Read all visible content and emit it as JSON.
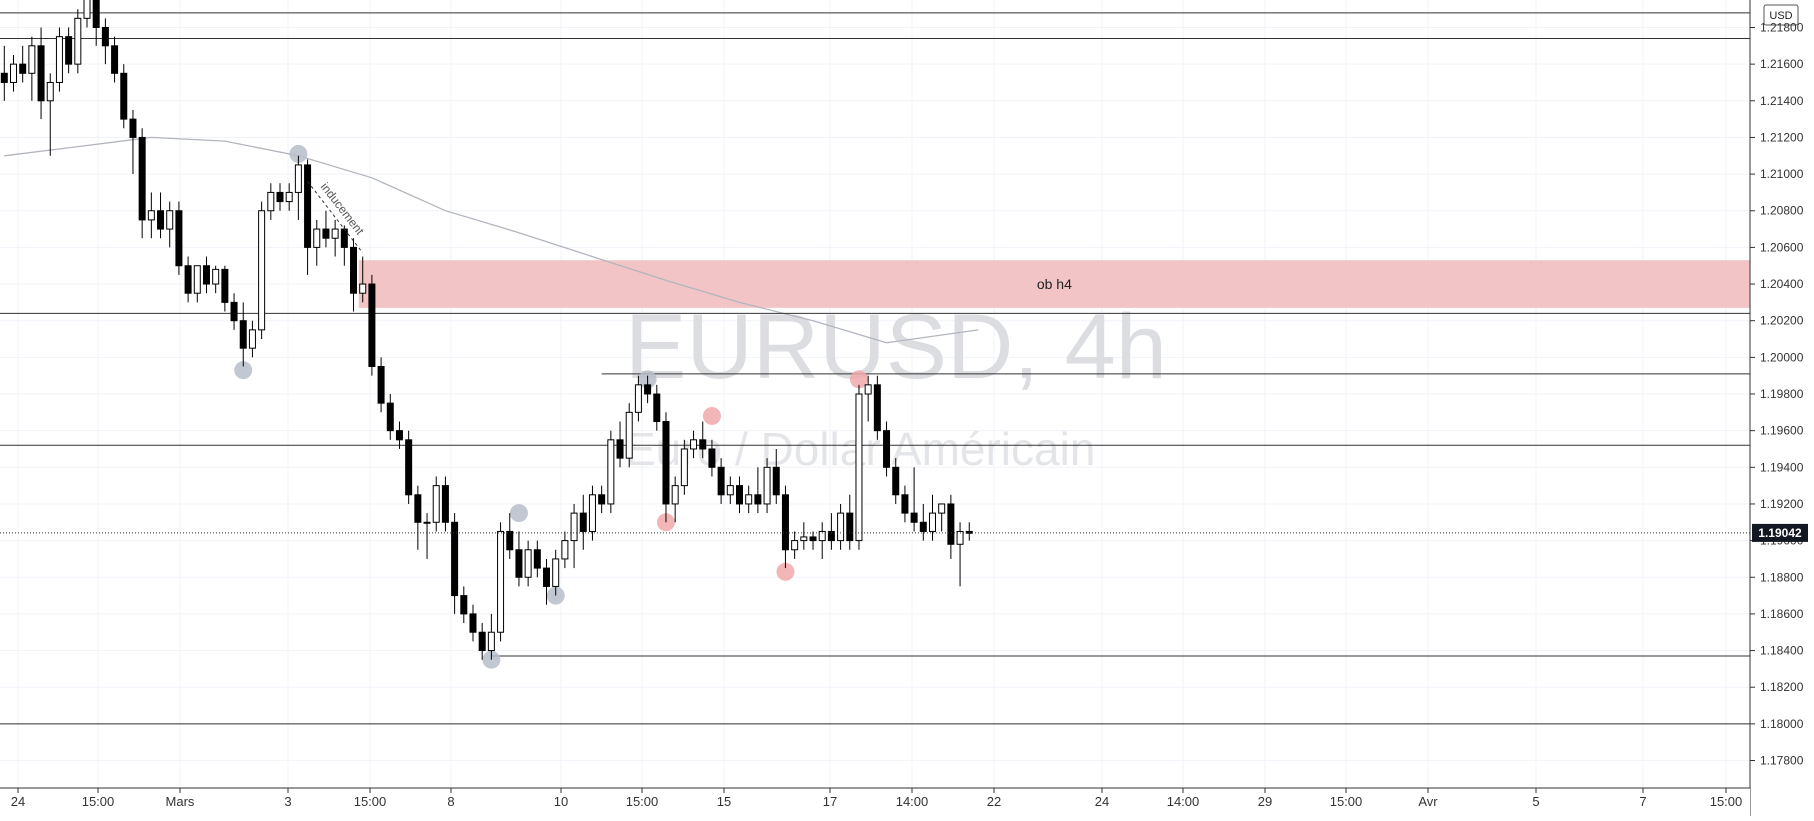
{
  "chart_data": {
    "type": "candlestick",
    "symbol": "EURUSD",
    "interval": "4h",
    "watermark_line1": "EURUSD, 4h",
    "watermark_line2": "Euro / Dollar Américain",
    "currency": "USD",
    "current_price": "1.19042",
    "ylim": [
      1.1765,
      1.2195
    ],
    "y_ticks": [
      "1.17800",
      "1.18000",
      "1.18200",
      "1.18400",
      "1.18600",
      "1.18800",
      "1.19000",
      "1.19200",
      "1.19400",
      "1.19600",
      "1.19800",
      "1.20000",
      "1.20200",
      "1.20400",
      "1.20600",
      "1.20800",
      "1.21000",
      "1.21200",
      "1.21400",
      "1.21600",
      "1.21800"
    ],
    "x_ticks": [
      "24",
      "15:00",
      "Mars",
      "3",
      "15:00",
      "8",
      "10",
      "15:00",
      "15",
      "17",
      "14:00",
      "22",
      "24",
      "14:00",
      "29",
      "15:00",
      "Avr",
      "5",
      "7",
      "15:00"
    ],
    "grid": true,
    "candles": [
      {
        "o": 1.2155,
        "h": 1.217,
        "l": 1.214,
        "c": 1.215
      },
      {
        "o": 1.215,
        "h": 1.2165,
        "l": 1.2145,
        "c": 1.216
      },
      {
        "o": 1.216,
        "h": 1.217,
        "l": 1.215,
        "c": 1.2155
      },
      {
        "o": 1.2155,
        "h": 1.2175,
        "l": 1.214,
        "c": 1.217
      },
      {
        "o": 1.217,
        "h": 1.218,
        "l": 1.213,
        "c": 1.214
      },
      {
        "o": 1.214,
        "h": 1.2155,
        "l": 1.211,
        "c": 1.215
      },
      {
        "o": 1.215,
        "h": 1.218,
        "l": 1.2145,
        "c": 1.2175
      },
      {
        "o": 1.2175,
        "h": 1.218,
        "l": 1.2155,
        "c": 1.216
      },
      {
        "o": 1.216,
        "h": 1.219,
        "l": 1.2155,
        "c": 1.2185
      },
      {
        "o": 1.2185,
        "h": 1.22,
        "l": 1.218,
        "c": 1.2198
      },
      {
        "o": 1.2198,
        "h": 1.22,
        "l": 1.217,
        "c": 1.218
      },
      {
        "o": 1.218,
        "h": 1.2185,
        "l": 1.216,
        "c": 1.217
      },
      {
        "o": 1.217,
        "h": 1.2175,
        "l": 1.215,
        "c": 1.2155
      },
      {
        "o": 1.2155,
        "h": 1.216,
        "l": 1.2125,
        "c": 1.213
      },
      {
        "o": 1.213,
        "h": 1.2135,
        "l": 1.21,
        "c": 1.212
      },
      {
        "o": 1.212,
        "h": 1.2125,
        "l": 1.2065,
        "c": 1.2075
      },
      {
        "o": 1.2075,
        "h": 1.209,
        "l": 1.2065,
        "c": 1.208
      },
      {
        "o": 1.208,
        "h": 1.209,
        "l": 1.2065,
        "c": 1.207
      },
      {
        "o": 1.207,
        "h": 1.2085,
        "l": 1.206,
        "c": 1.208
      },
      {
        "o": 1.208,
        "h": 1.2085,
        "l": 1.2045,
        "c": 1.205
      },
      {
        "o": 1.205,
        "h": 1.2055,
        "l": 1.203,
        "c": 1.2035
      },
      {
        "o": 1.2035,
        "h": 1.205,
        "l": 1.203,
        "c": 1.205
      },
      {
        "o": 1.205,
        "h": 1.2055,
        "l": 1.2035,
        "c": 1.204
      },
      {
        "o": 1.204,
        "h": 1.205,
        "l": 1.2035,
        "c": 1.2048
      },
      {
        "o": 1.2048,
        "h": 1.205,
        "l": 1.2025,
        "c": 1.203
      },
      {
        "o": 1.203,
        "h": 1.2035,
        "l": 1.2015,
        "c": 1.202
      },
      {
        "o": 1.202,
        "h": 1.203,
        "l": 1.1995,
        "c": 1.2005
      },
      {
        "o": 1.2005,
        "h": 1.202,
        "l": 1.2,
        "c": 1.2015
      },
      {
        "o": 1.2015,
        "h": 1.2085,
        "l": 1.201,
        "c": 1.208
      },
      {
        "o": 1.208,
        "h": 1.2095,
        "l": 1.2075,
        "c": 1.209
      },
      {
        "o": 1.209,
        "h": 1.2095,
        "l": 1.208,
        "c": 1.2085
      },
      {
        "o": 1.2085,
        "h": 1.2095,
        "l": 1.208,
        "c": 1.209
      },
      {
        "o": 1.209,
        "h": 1.211,
        "l": 1.2075,
        "c": 1.2105
      },
      {
        "o": 1.2105,
        "h": 1.2108,
        "l": 1.2045,
        "c": 1.206
      },
      {
        "o": 1.206,
        "h": 1.2075,
        "l": 1.205,
        "c": 1.207
      },
      {
        "o": 1.207,
        "h": 1.208,
        "l": 1.206,
        "c": 1.2065
      },
      {
        "o": 1.2065,
        "h": 1.2075,
        "l": 1.2055,
        "c": 1.207
      },
      {
        "o": 1.207,
        "h": 1.2072,
        "l": 1.205,
        "c": 1.206
      },
      {
        "o": 1.206,
        "h": 1.2065,
        "l": 1.2025,
        "c": 1.2035
      },
      {
        "o": 1.2035,
        "h": 1.2055,
        "l": 1.203,
        "c": 1.204
      },
      {
        "o": 1.204,
        "h": 1.2045,
        "l": 1.199,
        "c": 1.1995
      },
      {
        "o": 1.1995,
        "h": 1.2,
        "l": 1.197,
        "c": 1.1975
      },
      {
        "o": 1.1975,
        "h": 1.198,
        "l": 1.1955,
        "c": 1.196
      },
      {
        "o": 1.196,
        "h": 1.1965,
        "l": 1.195,
        "c": 1.1955
      },
      {
        "o": 1.1955,
        "h": 1.196,
        "l": 1.192,
        "c": 1.1925
      },
      {
        "o": 1.1925,
        "h": 1.193,
        "l": 1.1895,
        "c": 1.191
      },
      {
        "o": 1.191,
        "h": 1.1915,
        "l": 1.189,
        "c": 1.191
      },
      {
        "o": 1.191,
        "h": 1.1935,
        "l": 1.1905,
        "c": 1.193
      },
      {
        "o": 1.193,
        "h": 1.1935,
        "l": 1.1905,
        "c": 1.191
      },
      {
        "o": 1.191,
        "h": 1.1915,
        "l": 1.186,
        "c": 1.187
      },
      {
        "o": 1.187,
        "h": 1.1875,
        "l": 1.1855,
        "c": 1.186
      },
      {
        "o": 1.186,
        "h": 1.1865,
        "l": 1.1845,
        "c": 1.185
      },
      {
        "o": 1.185,
        "h": 1.1855,
        "l": 1.1835,
        "c": 1.184
      },
      {
        "o": 1.184,
        "h": 1.186,
        "l": 1.1835,
        "c": 1.185
      },
      {
        "o": 1.185,
        "h": 1.191,
        "l": 1.1845,
        "c": 1.1905
      },
      {
        "o": 1.1905,
        "h": 1.1915,
        "l": 1.189,
        "c": 1.1895
      },
      {
        "o": 1.1895,
        "h": 1.1905,
        "l": 1.1875,
        "c": 1.188
      },
      {
        "o": 1.188,
        "h": 1.19,
        "l": 1.1875,
        "c": 1.1895
      },
      {
        "o": 1.1895,
        "h": 1.19,
        "l": 1.188,
        "c": 1.1885
      },
      {
        "o": 1.1885,
        "h": 1.189,
        "l": 1.1865,
        "c": 1.1875
      },
      {
        "o": 1.1875,
        "h": 1.1895,
        "l": 1.187,
        "c": 1.189
      },
      {
        "o": 1.189,
        "h": 1.1905,
        "l": 1.1885,
        "c": 1.19
      },
      {
        "o": 1.19,
        "h": 1.192,
        "l": 1.1885,
        "c": 1.1915
      },
      {
        "o": 1.1915,
        "h": 1.1925,
        "l": 1.1895,
        "c": 1.1905
      },
      {
        "o": 1.1905,
        "h": 1.193,
        "l": 1.19,
        "c": 1.1925
      },
      {
        "o": 1.1925,
        "h": 1.193,
        "l": 1.1915,
        "c": 1.192
      },
      {
        "o": 1.192,
        "h": 1.196,
        "l": 1.1915,
        "c": 1.1955
      },
      {
        "o": 1.1955,
        "h": 1.1965,
        "l": 1.194,
        "c": 1.1945
      },
      {
        "o": 1.1945,
        "h": 1.1975,
        "l": 1.194,
        "c": 1.197
      },
      {
        "o": 1.197,
        "h": 1.199,
        "l": 1.1965,
        "c": 1.1985
      },
      {
        "o": 1.1985,
        "h": 1.199,
        "l": 1.1975,
        "c": 1.198
      },
      {
        "o": 1.198,
        "h": 1.1985,
        "l": 1.196,
        "c": 1.1965
      },
      {
        "o": 1.1965,
        "h": 1.197,
        "l": 1.191,
        "c": 1.192
      },
      {
        "o": 1.192,
        "h": 1.1935,
        "l": 1.191,
        "c": 1.193
      },
      {
        "o": 1.193,
        "h": 1.1955,
        "l": 1.1925,
        "c": 1.195
      },
      {
        "o": 1.195,
        "h": 1.196,
        "l": 1.1945,
        "c": 1.1955
      },
      {
        "o": 1.1955,
        "h": 1.1965,
        "l": 1.1945,
        "c": 1.195
      },
      {
        "o": 1.195,
        "h": 1.1955,
        "l": 1.1935,
        "c": 1.194
      },
      {
        "o": 1.194,
        "h": 1.1945,
        "l": 1.192,
        "c": 1.1925
      },
      {
        "o": 1.1925,
        "h": 1.1935,
        "l": 1.192,
        "c": 1.193
      },
      {
        "o": 1.193,
        "h": 1.1935,
        "l": 1.1915,
        "c": 1.192
      },
      {
        "o": 1.192,
        "h": 1.193,
        "l": 1.1915,
        "c": 1.1925
      },
      {
        "o": 1.1925,
        "h": 1.194,
        "l": 1.1915,
        "c": 1.192
      },
      {
        "o": 1.192,
        "h": 1.1945,
        "l": 1.1915,
        "c": 1.194
      },
      {
        "o": 1.194,
        "h": 1.195,
        "l": 1.192,
        "c": 1.1925
      },
      {
        "o": 1.1925,
        "h": 1.193,
        "l": 1.1885,
        "c": 1.1895
      },
      {
        "o": 1.1895,
        "h": 1.1905,
        "l": 1.189,
        "c": 1.19
      },
      {
        "o": 1.19,
        "h": 1.191,
        "l": 1.1895,
        "c": 1.1902
      },
      {
        "o": 1.1902,
        "h": 1.1905,
        "l": 1.1895,
        "c": 1.19
      },
      {
        "o": 1.19,
        "h": 1.191,
        "l": 1.189,
        "c": 1.1905
      },
      {
        "o": 1.1905,
        "h": 1.1915,
        "l": 1.1895,
        "c": 1.19
      },
      {
        "o": 1.19,
        "h": 1.192,
        "l": 1.1895,
        "c": 1.1915
      },
      {
        "o": 1.1915,
        "h": 1.1925,
        "l": 1.1895,
        "c": 1.19
      },
      {
        "o": 1.19,
        "h": 1.1985,
        "l": 1.1895,
        "c": 1.198
      },
      {
        "o": 1.198,
        "h": 1.199,
        "l": 1.1965,
        "c": 1.1985
      },
      {
        "o": 1.1985,
        "h": 1.199,
        "l": 1.1955,
        "c": 1.196
      },
      {
        "o": 1.196,
        "h": 1.1965,
        "l": 1.1935,
        "c": 1.194
      },
      {
        "o": 1.194,
        "h": 1.1945,
        "l": 1.192,
        "c": 1.1925
      },
      {
        "o": 1.1925,
        "h": 1.193,
        "l": 1.191,
        "c": 1.1915
      },
      {
        "o": 1.1915,
        "h": 1.194,
        "l": 1.1905,
        "c": 1.191
      },
      {
        "o": 1.191,
        "h": 1.192,
        "l": 1.19,
        "c": 1.1905
      },
      {
        "o": 1.1905,
        "h": 1.1925,
        "l": 1.19,
        "c": 1.1915
      },
      {
        "o": 1.1915,
        "h": 1.192,
        "l": 1.1905,
        "c": 1.192
      },
      {
        "o": 1.192,
        "h": 1.1925,
        "l": 1.189,
        "c": 1.1898
      },
      {
        "o": 1.1898,
        "h": 1.191,
        "l": 1.1875,
        "c": 1.1905
      },
      {
        "o": 1.1905,
        "h": 1.191,
        "l": 1.19,
        "c": 1.1904
      }
    ],
    "ma_line": [
      [
        0,
        1.211
      ],
      [
        8,
        1.2115
      ],
      [
        16,
        1.212
      ],
      [
        24,
        1.2118
      ],
      [
        32,
        1.211
      ],
      [
        40,
        1.2098
      ],
      [
        48,
        1.208
      ],
      [
        56,
        1.2068
      ],
      [
        64,
        1.2055
      ],
      [
        72,
        1.2042
      ],
      [
        80,
        1.203
      ],
      [
        88,
        1.202
      ],
      [
        96,
        1.2008
      ],
      [
        106,
        1.2015
      ]
    ],
    "zones": [
      {
        "label": "ob h4",
        "from_index": 39,
        "price_top": 1.2053,
        "price_bottom": 1.2027,
        "color": "#f3c4c6"
      }
    ],
    "horizontal_lines": [
      {
        "from_index": -1,
        "price": 1.2188,
        "color": "#333333"
      },
      {
        "from_index": -1,
        "price": 1.2174,
        "color": "#333333"
      },
      {
        "from_index": -1,
        "price": 1.2024,
        "color": "#333333"
      },
      {
        "from_index": -1,
        "price": 1.1952,
        "color": "#333333"
      },
      {
        "from_index": 65,
        "price": 1.1991,
        "color": "#333333"
      },
      {
        "from_index": 53,
        "price": 1.1837,
        "color": "#333333"
      },
      {
        "from_index": -1,
        "price": 1.18,
        "color": "#333333"
      }
    ],
    "markers": [
      {
        "index": 32,
        "price": 1.2111,
        "color": "#b7bec9"
      },
      {
        "index": 26,
        "price": 1.1993,
        "color": "#b7bec9"
      },
      {
        "index": 56,
        "price": 1.1915,
        "color": "#b7bec9"
      },
      {
        "index": 53,
        "price": 1.1835,
        "color": "#b7bec9"
      },
      {
        "index": 60,
        "price": 1.187,
        "color": "#b7bec9"
      },
      {
        "index": 70,
        "price": 1.1988,
        "color": "#b7bec9"
      },
      {
        "index": 72,
        "price": 1.191,
        "color": "#f1a9aa"
      },
      {
        "index": 77,
        "price": 1.1968,
        "color": "#f1a9aa"
      },
      {
        "index": 85,
        "price": 1.1883,
        "color": "#f1a9aa"
      },
      {
        "index": 93,
        "price": 1.1988,
        "color": "#f1a9aa"
      }
    ],
    "annotation": {
      "text": "inducement",
      "from_index": 33,
      "from_price": 1.2096,
      "to_index": 39,
      "to_price": 1.2057
    }
  }
}
